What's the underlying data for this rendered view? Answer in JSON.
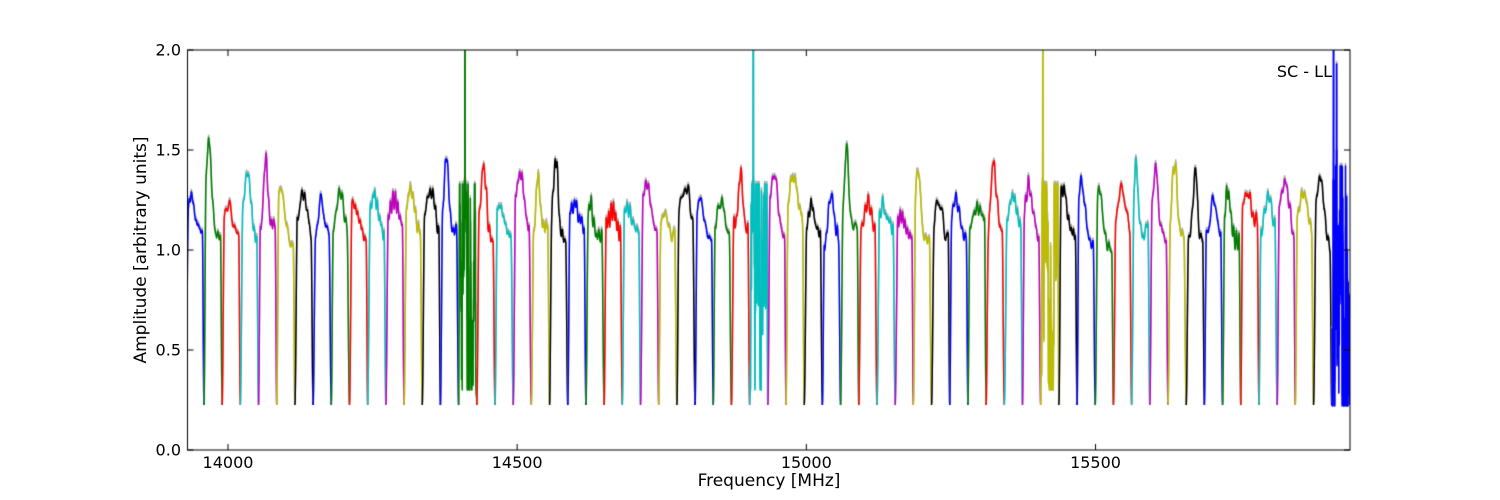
{
  "chart_data": {
    "type": "line",
    "title": "SC - LL",
    "xlabel": "Frequency [MHz]",
    "ylabel": "Amplitude [arbitrary units]",
    "xlim": [
      13930,
      15940
    ],
    "ylim": [
      0.0,
      2.0
    ],
    "xticks": [
      14000,
      14500,
      15000,
      15500
    ],
    "xtick_labels": [
      "14000",
      "14500",
      "15000",
      "15500"
    ],
    "yticks": [
      0.0,
      0.5,
      1.0,
      1.5,
      2.0
    ],
    "ytick_labels": [
      "0.0",
      "0.5",
      "1.0",
      "1.5",
      "2.0"
    ],
    "grid": false,
    "legend": "none",
    "background": "#ffffff",
    "axis_color": "#000000",
    "grey_underlay_color": "#b0b0b0",
    "colors": {
      "b": "#0000ff",
      "g": "#007d00",
      "r": "#ff0000",
      "c": "#00bfbf",
      "m": "#bf00bf",
      "y": "#bcbc00",
      "k": "#000000"
    },
    "baseline": 0.225,
    "n_subbands": 64,
    "subband_start_mhz": 13927,
    "subband_width_mhz": 31.45,
    "rfi_spike_subbands": [
      15,
      31,
      47,
      63
    ],
    "rfi_spike_freqs_mhz": [
      14410,
      14908,
      15409,
      15912
    ],
    "bands": [
      {
        "c": "b",
        "p": 1.27
      },
      {
        "c": "g",
        "p": 1.52
      },
      {
        "c": "r",
        "p": 1.2
      },
      {
        "c": "c",
        "p": 1.38
      },
      {
        "c": "m",
        "p": 1.47
      },
      {
        "c": "y",
        "p": 1.3
      },
      {
        "c": "k",
        "p": 1.28
      },
      {
        "c": "b",
        "p": 1.25
      },
      {
        "c": "g",
        "p": 1.29
      },
      {
        "c": "r",
        "p": 1.22
      },
      {
        "c": "c",
        "p": 1.26
      },
      {
        "c": "m",
        "p": 1.25
      },
      {
        "c": "y",
        "p": 1.29
      },
      {
        "c": "k",
        "p": 1.3
      },
      {
        "c": "b",
        "p": 1.48
      },
      {
        "c": "g",
        "p": 1.3,
        "noisy": true,
        "st": 0.35
      },
      {
        "c": "r",
        "p": 1.41
      },
      {
        "c": "c",
        "p": 1.2
      },
      {
        "c": "m",
        "p": 1.38
      },
      {
        "c": "y",
        "p": 1.39
      },
      {
        "c": "k",
        "p": 1.45
      },
      {
        "c": "b",
        "p": 1.24
      },
      {
        "c": "g",
        "p": 1.25
      },
      {
        "c": "r",
        "p": 1.2
      },
      {
        "c": "c",
        "p": 1.2
      },
      {
        "c": "m",
        "p": 1.32
      },
      {
        "c": "y",
        "p": 1.17
      },
      {
        "c": "k",
        "p": 1.31
      },
      {
        "c": "b",
        "p": 1.27
      },
      {
        "c": "g",
        "p": 1.24
      },
      {
        "c": "r",
        "p": 1.39
      },
      {
        "c": "c",
        "p": 1.32,
        "noisy": true,
        "st": 0.2
      },
      {
        "c": "m",
        "p": 1.36
      },
      {
        "c": "y",
        "p": 1.36
      },
      {
        "c": "k",
        "p": 1.22
      },
      {
        "c": "b",
        "p": 1.28
      },
      {
        "c": "g",
        "p": 1.52
      },
      {
        "c": "r",
        "p": 1.24
      },
      {
        "c": "c",
        "p": 1.23
      },
      {
        "c": "m",
        "p": 1.18
      },
      {
        "c": "y",
        "p": 1.42
      },
      {
        "c": "k",
        "p": 1.26
      },
      {
        "c": "b",
        "p": 1.26
      },
      {
        "c": "g",
        "p": 1.21
      },
      {
        "c": "r",
        "p": 1.46
      },
      {
        "c": "c",
        "p": 1.27
      },
      {
        "c": "m",
        "p": 1.31
      },
      {
        "c": "y",
        "p": 1.33,
        "noisy": true,
        "st": 0.12
      },
      {
        "c": "k",
        "p": 1.3
      },
      {
        "c": "b",
        "p": 1.33
      },
      {
        "c": "g",
        "p": 1.28
      },
      {
        "c": "r",
        "p": 1.3
      },
      {
        "c": "c",
        "p": 1.46
      },
      {
        "c": "m",
        "p": 1.37
      },
      {
        "c": "y",
        "p": 1.44
      },
      {
        "c": "k",
        "p": 1.4
      },
      {
        "c": "b",
        "p": 1.25
      },
      {
        "c": "g",
        "p": 1.3
      },
      {
        "c": "r",
        "p": 1.3
      },
      {
        "c": "c",
        "p": 1.27
      },
      {
        "c": "m",
        "p": 1.33
      },
      {
        "c": "y",
        "p": 1.28
      },
      {
        "c": "k",
        "p": 1.35
      },
      {
        "c": "b",
        "p": 1.35,
        "noisy": true,
        "st": 0.1
      }
    ]
  }
}
